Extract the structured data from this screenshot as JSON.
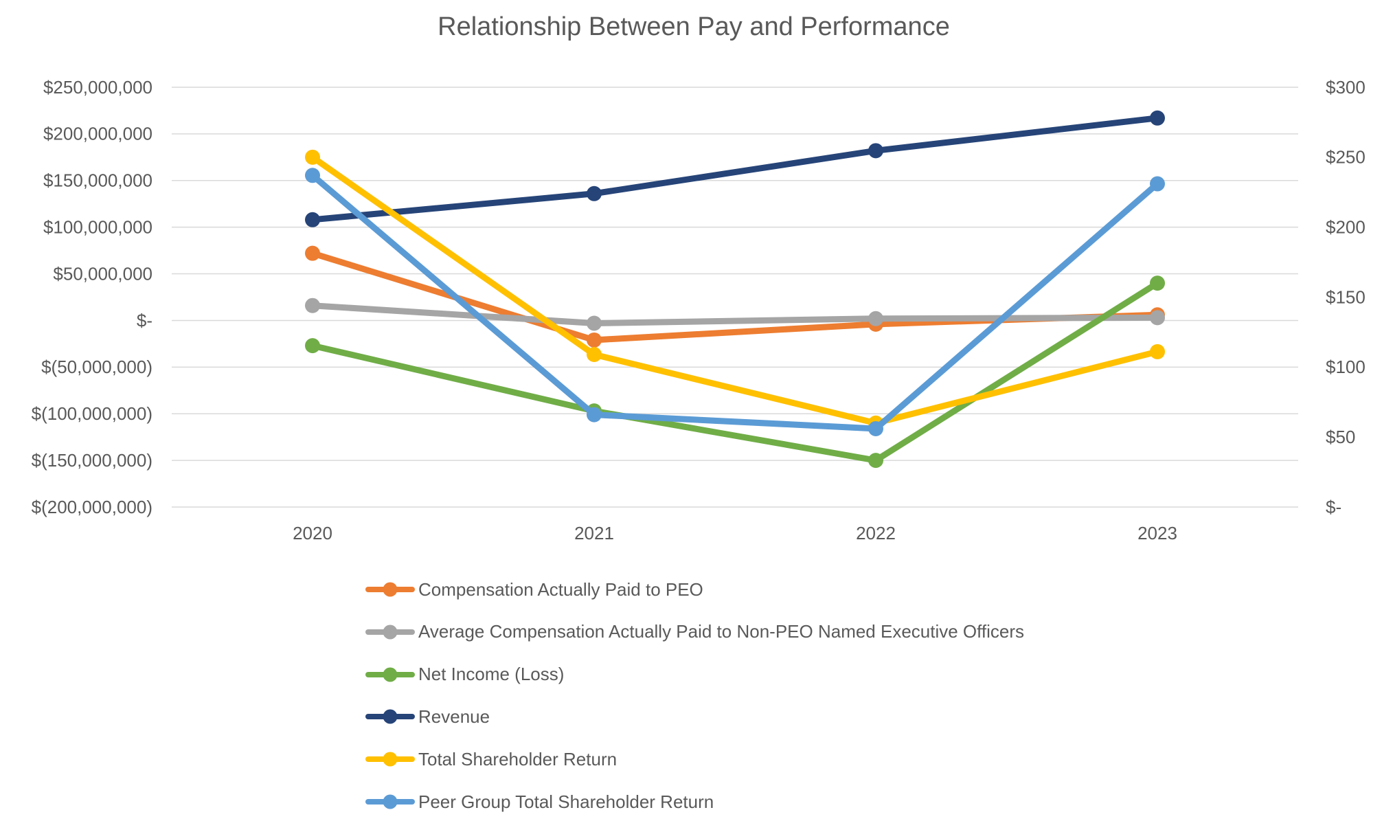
{
  "title": "Relationship Between Pay and Performance",
  "colors": {
    "background": "#FFFFFF",
    "text": "#595959",
    "gridline": "#D9D9D9"
  },
  "chart_data": {
    "type": "line",
    "title": "Relationship Between Pay and Performance",
    "categories": [
      "2020",
      "2021",
      "2022",
      "2023"
    ],
    "series": [
      {
        "name": "Compensation Actually Paid to PEO",
        "color": "#ED7D31",
        "axis": "left",
        "values": [
          72000000,
          -21000000,
          -4000000,
          6000000
        ]
      },
      {
        "name": "Average Compensation Actually Paid to Non-PEO Named Executive Officers",
        "color": "#A5A5A5",
        "axis": "left",
        "values": [
          16000000,
          -3000000,
          2000000,
          3000000
        ]
      },
      {
        "name": "Net Income (Loss)",
        "color": "#70AD47",
        "axis": "left",
        "values": [
          -27000000,
          -97000000,
          -150000000,
          40000000
        ]
      },
      {
        "name": "Revenue",
        "color": "#264478",
        "axis": "left",
        "values": [
          108000000,
          136000000,
          182000000,
          217000000
        ]
      },
      {
        "name": "Total Shareholder Return",
        "color": "#FFC000",
        "axis": "right",
        "values": [
          250,
          109,
          60,
          111
        ]
      },
      {
        "name": "Peer Group Total Shareholder Return",
        "color": "#5B9BD5",
        "axis": "right",
        "values": [
          237,
          66,
          56,
          231
        ]
      }
    ],
    "left_axis": {
      "min": -200000000,
      "max": 250000000,
      "tick_step": 50000000,
      "tick_labels": [
        "$250,000,000",
        "$200,000,000",
        "$150,000,000",
        "$100,000,000",
        "$50,000,000",
        "$-",
        "$(50,000,000)",
        "$(100,000,000)",
        "$(150,000,000)",
        "$(200,000,000)"
      ]
    },
    "right_axis": {
      "min": 0,
      "max": 300,
      "tick_step": 50,
      "tick_labels": [
        "$300",
        "$250",
        "$200",
        "$150",
        "$100",
        "$50",
        "$-"
      ]
    },
    "xlabel": "",
    "ylabel": "",
    "grid": true,
    "legend_position": "bottom-left"
  }
}
